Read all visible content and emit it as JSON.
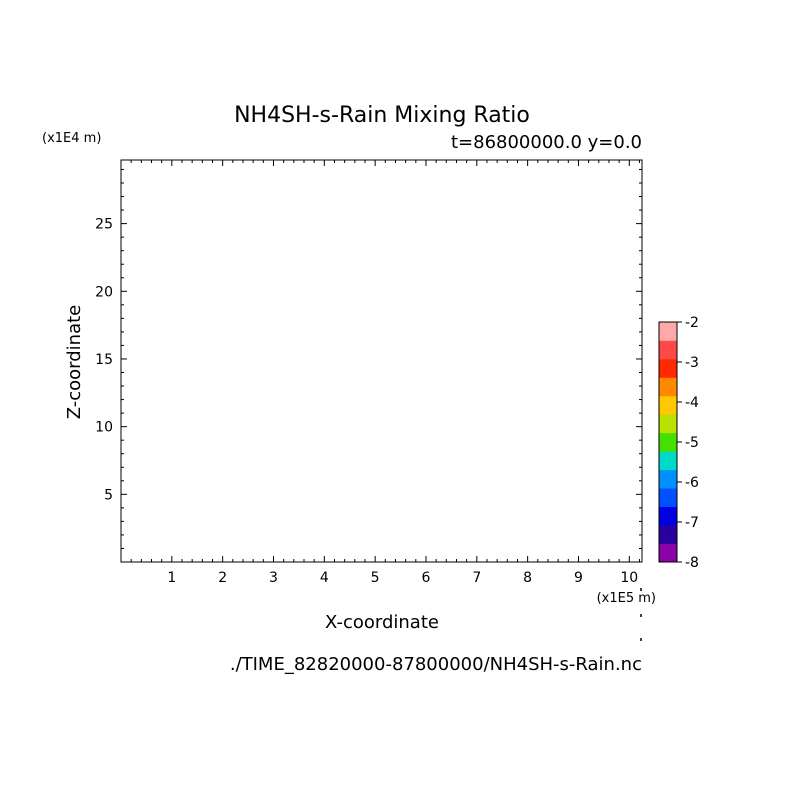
{
  "chart_data": {
    "type": "heatmap",
    "title": "NH4SH-s-Rain Mixing Ratio",
    "subtitle": "t=86800000.0 y=0.0",
    "xlabel": "X-coordinate",
    "ylabel": "Z-coordinate",
    "x_unit": "(x1E5 m)",
    "y_unit": "(x1E4 m)",
    "xlim": [
      0,
      10.25
    ],
    "ylim": [
      0,
      29.7
    ],
    "x_ticks": [
      1,
      2,
      3,
      4,
      5,
      6,
      7,
      8,
      9,
      10
    ],
    "y_ticks": [
      5,
      10,
      15,
      20,
      25
    ],
    "x_minor_step": 0.2,
    "y_minor_step": 1,
    "grid": false,
    "data": [],
    "colorbar": {
      "levels": [
        -8,
        -7.5,
        -7,
        -6.5,
        -6,
        -5.5,
        -5,
        -4.5,
        -4,
        -3.5,
        -3,
        -2.5,
        -2
      ],
      "tick_labels": [
        "-2",
        "-3",
        "-4",
        "-5",
        "-6",
        "-7",
        "-8"
      ],
      "tick_values": [
        -2,
        -3,
        -4,
        -5,
        -6,
        -7,
        -8
      ],
      "colors": [
        "#8b00a8",
        "#2a00a0",
        "#0000e0",
        "#0050ff",
        "#0090ff",
        "#00d8c8",
        "#44e000",
        "#b8e000",
        "#ffc800",
        "#ff8800",
        "#ff2800",
        "#ff4848",
        "#ffa8a8"
      ]
    },
    "footer": "./TIME_82820000-87800000/NH4SH-s-Rain.nc"
  }
}
